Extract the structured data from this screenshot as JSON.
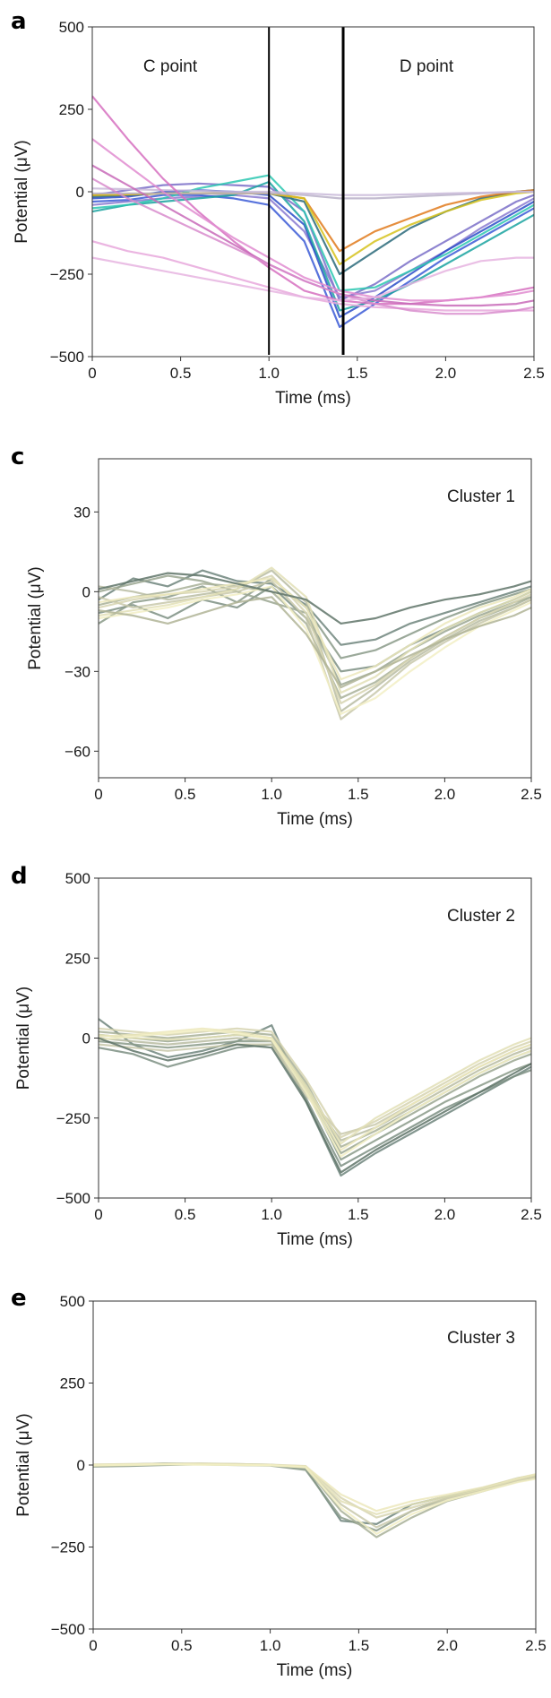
{
  "chart_data": [
    {
      "panel": "a",
      "type": "line",
      "xlabel": "Time (ms)",
      "ylabel": "Potential (μV)",
      "xlim": [
        0,
        2.5
      ],
      "ylim": [
        -500,
        500
      ],
      "xticks": [
        "0",
        "0.5",
        "1.0",
        "1.5",
        "2.0",
        "2.5"
      ],
      "yticks": [
        "500",
        "250",
        "0",
        "−250",
        "−500"
      ],
      "annotations": [
        "C point",
        "D point"
      ],
      "vertical_lines_x": [
        1.0,
        1.42
      ],
      "x": [
        0,
        0.2,
        0.4,
        0.6,
        0.8,
        1.0,
        1.2,
        1.4,
        1.6,
        1.8,
        2.0,
        2.2,
        2.4,
        2.5
      ],
      "series": [
        {
          "color": "#7a6fc8",
          "values": [
            -10,
            5,
            20,
            25,
            20,
            15,
            -60,
            -330,
            -280,
            -210,
            -150,
            -90,
            -30,
            -10
          ]
        },
        {
          "color": "#8a7ad0",
          "values": [
            -40,
            -30,
            -20,
            -15,
            -10,
            -20,
            -120,
            -320,
            -300,
            -240,
            -180,
            -110,
            -50,
            -20
          ]
        },
        {
          "color": "#3b5bd6",
          "values": [
            -30,
            -25,
            -10,
            -10,
            -20,
            -40,
            -150,
            -410,
            -340,
            -270,
            -200,
            -140,
            -80,
            -50
          ]
        },
        {
          "color": "#2c4ec8",
          "values": [
            -20,
            -15,
            0,
            5,
            0,
            -10,
            -100,
            -380,
            -320,
            -250,
            -180,
            -120,
            -60,
            -30
          ]
        },
        {
          "color": "#1aa3a0",
          "values": [
            -60,
            -40,
            -30,
            -20,
            -10,
            30,
            -90,
            -360,
            -330,
            -280,
            -220,
            -160,
            -100,
            -70
          ]
        },
        {
          "color": "#2ac7b0",
          "values": [
            -50,
            -40,
            -20,
            10,
            30,
            50,
            -60,
            -300,
            -290,
            -240,
            -190,
            -130,
            -70,
            -40
          ]
        },
        {
          "color": "#2a6a7a",
          "values": [
            -15,
            -10,
            -5,
            -5,
            -5,
            -5,
            -30,
            -250,
            -180,
            -110,
            -60,
            -20,
            0,
            5
          ]
        },
        {
          "color": "#e07a1c",
          "values": [
            -10,
            -8,
            -5,
            -5,
            -5,
            -5,
            -20,
            -180,
            -120,
            -80,
            -40,
            -15,
            0,
            5
          ]
        },
        {
          "color": "#d6c21c",
          "values": [
            -10,
            -8,
            -5,
            -5,
            -5,
            -5,
            -20,
            -220,
            -150,
            -100,
            -60,
            -25,
            -5,
            0
          ]
        },
        {
          "color": "#b8b0c8",
          "values": [
            -5,
            -5,
            -5,
            -5,
            -5,
            -5,
            -10,
            -20,
            -20,
            -15,
            -10,
            -5,
            0,
            0
          ]
        },
        {
          "color": "#c8b8d8",
          "values": [
            10,
            8,
            5,
            3,
            0,
            0,
            -5,
            -10,
            -10,
            -8,
            -5,
            -3,
            0,
            0
          ]
        },
        {
          "color": "#d670c0",
          "values": [
            290,
            160,
            40,
            -60,
            -150,
            -230,
            -300,
            -330,
            -340,
            -340,
            -330,
            -320,
            -300,
            -290
          ]
        },
        {
          "color": "#e08cd0",
          "values": [
            160,
            80,
            0,
            -70,
            -140,
            -200,
            -260,
            -300,
            -320,
            -330,
            -330,
            -320,
            -310,
            -300
          ]
        },
        {
          "color": "#c86ab8",
          "values": [
            80,
            20,
            -40,
            -100,
            -160,
            -220,
            -270,
            -310,
            -330,
            -340,
            -345,
            -345,
            -340,
            -330
          ]
        },
        {
          "color": "#e8a8dc",
          "values": [
            -150,
            -180,
            -200,
            -230,
            -260,
            -290,
            -320,
            -340,
            -350,
            -355,
            -360,
            -360,
            -360,
            -360
          ]
        },
        {
          "color": "#d88ccc",
          "values": [
            40,
            -20,
            -70,
            -120,
            -170,
            -220,
            -270,
            -310,
            -340,
            -360,
            -370,
            -370,
            -360,
            -350
          ]
        },
        {
          "color": "#e6b4e0",
          "values": [
            -200,
            -220,
            -240,
            -260,
            -280,
            -300,
            -320,
            -330,
            -320,
            -280,
            -240,
            -210,
            -200,
            -200
          ]
        }
      ]
    },
    {
      "panel": "c",
      "type": "line",
      "xlabel": "Time (ms)",
      "ylabel": "Potential (μV)",
      "xlim": [
        0,
        2.5
      ],
      "ylim": [
        -70,
        50
      ],
      "xticks": [
        "0",
        "0.5",
        "1.0",
        "1.5",
        "2.0",
        "2.5"
      ],
      "yticks": [
        "30",
        "0",
        "−30",
        "−60"
      ],
      "annotations": [
        "Cluster 1"
      ],
      "x": [
        0,
        0.2,
        0.4,
        0.6,
        0.8,
        1.0,
        1.2,
        1.4,
        1.6,
        1.8,
        2.0,
        2.2,
        2.4,
        2.5
      ],
      "series": [
        {
          "color": "#6f857c",
          "values": [
            -3,
            5,
            2,
            8,
            4,
            3,
            -5,
            -20,
            -18,
            -12,
            -8,
            -4,
            0,
            2
          ]
        },
        {
          "color": "#7c8f82",
          "values": [
            -8,
            -5,
            -10,
            -3,
            -6,
            2,
            -10,
            -30,
            -28,
            -20,
            -14,
            -8,
            -3,
            0
          ]
        },
        {
          "color": "#8a9a88",
          "values": [
            -12,
            -4,
            -2,
            2,
            -4,
            5,
            -6,
            -25,
            -22,
            -16,
            -10,
            -5,
            -1,
            1
          ]
        },
        {
          "color": "#9aa690",
          "values": [
            0,
            3,
            6,
            4,
            0,
            -4,
            -8,
            -35,
            -30,
            -22,
            -15,
            -9,
            -4,
            -2
          ]
        },
        {
          "color": "#a8b098",
          "values": [
            -5,
            -2,
            0,
            3,
            2,
            0,
            -12,
            -40,
            -34,
            -25,
            -17,
            -10,
            -5,
            -2
          ]
        },
        {
          "color": "#b8bca2",
          "values": [
            2,
            0,
            -3,
            -1,
            1,
            8,
            -4,
            -45,
            -36,
            -26,
            -18,
            -11,
            -6,
            -3
          ]
        },
        {
          "color": "#c8c8aa",
          "values": [
            -2,
            -6,
            -4,
            -2,
            0,
            4,
            -10,
            -48,
            -38,
            -27,
            -19,
            -12,
            -6,
            -3
          ]
        },
        {
          "color": "#d6d4b0",
          "values": [
            -6,
            -3,
            -1,
            0,
            2,
            6,
            -8,
            -42,
            -35,
            -25,
            -17,
            -10,
            -4,
            -1
          ]
        },
        {
          "color": "#e2dfb6",
          "values": [
            -9,
            -7,
            -5,
            -2,
            1,
            9,
            -2,
            -38,
            -32,
            -22,
            -14,
            -8,
            -3,
            0
          ]
        },
        {
          "color": "#ece8bc",
          "values": [
            -4,
            -2,
            -1,
            1,
            3,
            5,
            -6,
            -33,
            -28,
            -20,
            -12,
            -6,
            -2,
            1
          ]
        },
        {
          "color": "#f2eec4",
          "values": [
            -10,
            -8,
            -6,
            -3,
            -1,
            2,
            -14,
            -46,
            -40,
            -30,
            -21,
            -13,
            -7,
            -4
          ]
        },
        {
          "color": "#5f7468",
          "values": [
            1,
            4,
            7,
            6,
            3,
            0,
            -3,
            -12,
            -10,
            -6,
            -3,
            -1,
            2,
            4
          ]
        },
        {
          "color": "#b0b496",
          "values": [
            -7,
            -9,
            -12,
            -8,
            -4,
            -2,
            -16,
            -36,
            -30,
            -24,
            -18,
            -13,
            -9,
            -6
          ]
        }
      ]
    },
    {
      "panel": "d",
      "type": "line",
      "xlabel": "Time (ms)",
      "ylabel": "Potential (μV)",
      "xlim": [
        0,
        2.5
      ],
      "ylim": [
        -500,
        500
      ],
      "xticks": [
        "0",
        "0.5",
        "1.0",
        "1.5",
        "2.0",
        "2.5"
      ],
      "yticks": [
        "500",
        "250",
        "0",
        "−250",
        "−500"
      ],
      "annotations": [
        "Cluster 2"
      ],
      "x": [
        0,
        0.2,
        0.4,
        0.6,
        0.8,
        1.0,
        1.2,
        1.4,
        1.6,
        1.8,
        2.0,
        2.2,
        2.4,
        2.5
      ],
      "series": [
        {
          "color": "#6f857c",
          "values": [
            60,
            -20,
            -60,
            -40,
            -10,
            40,
            -200,
            -430,
            -360,
            -300,
            -240,
            -180,
            -120,
            -90
          ]
        },
        {
          "color": "#7c8f82",
          "values": [
            -30,
            -50,
            -90,
            -60,
            -30,
            -20,
            -190,
            -400,
            -340,
            -280,
            -220,
            -170,
            -120,
            -100
          ]
        },
        {
          "color": "#8a9a88",
          "values": [
            -10,
            -20,
            -30,
            -20,
            -10,
            -10,
            -160,
            -380,
            -320,
            -260,
            -200,
            -150,
            -100,
            -80
          ]
        },
        {
          "color": "#9aa690",
          "values": [
            10,
            0,
            -10,
            0,
            10,
            0,
            -150,
            -360,
            -300,
            -240,
            -180,
            -120,
            -70,
            -50
          ]
        },
        {
          "color": "#a8b098",
          "values": [
            20,
            10,
            0,
            10,
            20,
            10,
            -140,
            -340,
            -290,
            -230,
            -170,
            -110,
            -60,
            -40
          ]
        },
        {
          "color": "#b8bca2",
          "values": [
            0,
            -10,
            -20,
            -10,
            0,
            -10,
            -170,
            -320,
            -280,
            -220,
            -160,
            -100,
            -50,
            -30
          ]
        },
        {
          "color": "#c8c8aa",
          "values": [
            -20,
            -30,
            -40,
            -30,
            -20,
            -20,
            -180,
            -300,
            -270,
            -210,
            -150,
            -90,
            -40,
            -20
          ]
        },
        {
          "color": "#d6d4b0",
          "values": [
            30,
            20,
            10,
            20,
            30,
            20,
            -130,
            -310,
            -260,
            -200,
            -140,
            -80,
            -30,
            -10
          ]
        },
        {
          "color": "#e2dfb6",
          "values": [
            10,
            0,
            -5,
            0,
            10,
            0,
            -150,
            -330,
            -250,
            -190,
            -130,
            -70,
            -20,
            0
          ]
        },
        {
          "color": "#ece8bc",
          "values": [
            5,
            10,
            20,
            30,
            20,
            0,
            -160,
            -350,
            -280,
            -210,
            -150,
            -90,
            -40,
            -20
          ]
        },
        {
          "color": "#f2eec4",
          "values": [
            -5,
            5,
            15,
            25,
            15,
            -5,
            -170,
            -370,
            -300,
            -230,
            -170,
            -110,
            -60,
            -40
          ]
        },
        {
          "color": "#5f7468",
          "values": [
            0,
            -40,
            -70,
            -50,
            -20,
            -30,
            -200,
            -420,
            -350,
            -290,
            -230,
            -170,
            -110,
            -80
          ]
        }
      ]
    },
    {
      "panel": "e",
      "type": "line",
      "xlabel": "Time (ms)",
      "ylabel": "Potential (μV)",
      "xlim": [
        0,
        2.5
      ],
      "ylim": [
        -500,
        500
      ],
      "xticks": [
        "0",
        "0.5",
        "1.0",
        "1.5",
        "2.0",
        "2.5"
      ],
      "yticks": [
        "500",
        "250",
        "0",
        "−250",
        "−500"
      ],
      "annotations": [
        "Cluster 3"
      ],
      "x": [
        0,
        0.2,
        0.4,
        0.6,
        0.8,
        1.0,
        1.2,
        1.4,
        1.6,
        1.8,
        2.0,
        2.2,
        2.4,
        2.5
      ],
      "series": [
        {
          "color": "#6f857c",
          "values": [
            0,
            2,
            5,
            3,
            2,
            0,
            -10,
            -170,
            -180,
            -120,
            -95,
            -70,
            -40,
            -30
          ]
        },
        {
          "color": "#8a9a88",
          "values": [
            -5,
            -3,
            0,
            2,
            0,
            -2,
            -15,
            -160,
            -200,
            -140,
            -100,
            -75,
            -45,
            -35
          ]
        },
        {
          "color": "#a8b098",
          "values": [
            -3,
            -1,
            2,
            4,
            3,
            1,
            -8,
            -140,
            -220,
            -160,
            -110,
            -80,
            -50,
            -40
          ]
        },
        {
          "color": "#c8c8aa",
          "values": [
            0,
            0,
            3,
            2,
            1,
            0,
            -5,
            -120,
            -190,
            -140,
            -105,
            -78,
            -48,
            -38
          ]
        },
        {
          "color": "#d6d4b0",
          "values": [
            2,
            3,
            4,
            5,
            3,
            1,
            -3,
            -100,
            -160,
            -130,
            -100,
            -75,
            -45,
            -35
          ]
        },
        {
          "color": "#e2dfb6",
          "values": [
            -2,
            0,
            2,
            3,
            2,
            0,
            -6,
            -110,
            -150,
            -120,
            -95,
            -72,
            -42,
            -30
          ]
        },
        {
          "color": "#ece8bc",
          "values": [
            1,
            2,
            3,
            2,
            1,
            0,
            -4,
            -90,
            -140,
            -110,
            -90,
            -68,
            -40,
            -28
          ]
        },
        {
          "color": "#f2eec4",
          "values": [
            -1,
            1,
            2,
            1,
            0,
            -1,
            -7,
            -130,
            -210,
            -150,
            -108,
            -80,
            -52,
            -42
          ]
        }
      ]
    }
  ]
}
